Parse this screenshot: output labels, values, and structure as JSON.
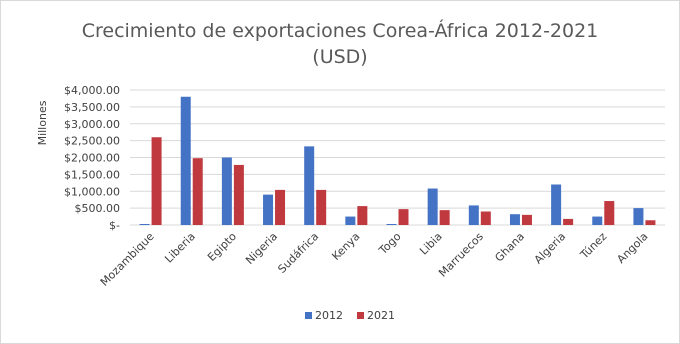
{
  "chart_data": {
    "type": "bar",
    "title": "Crecimiento de exportaciones Corea-África 2012-2021",
    "subtitle": "(USD)",
    "xlabel": "",
    "ylabel": "Millones",
    "ylim": [
      0,
      4000
    ],
    "yticks": [
      0,
      500,
      1000,
      1500,
      2000,
      2500,
      3000,
      3500,
      4000
    ],
    "ytick_labels": [
      "$-",
      "$500.00",
      "$1,000.00",
      "$1,500.00",
      "$2,000.00",
      "$2,500.00",
      "$3,000.00",
      "$3,500.00",
      "$4,000.00"
    ],
    "grid": true,
    "legend_position": "bottom",
    "categories": [
      "Mozambique",
      "Liberia",
      "Egipto",
      "Nigeria",
      "Sudáfrica",
      "Kenya",
      "Togo",
      "Libia",
      "Marruecos",
      "Ghana",
      "Algeria",
      "Túnez",
      "Angola"
    ],
    "series": [
      {
        "name": "2012",
        "color": "#4472C4",
        "values": [
          30,
          3800,
          2000,
          900,
          2330,
          250,
          30,
          1080,
          580,
          320,
          1200,
          250,
          500
        ]
      },
      {
        "name": "2021",
        "color": "#C0393F",
        "values": [
          2600,
          1980,
          1780,
          1040,
          1040,
          560,
          470,
          440,
          400,
          300,
          180,
          710,
          140
        ]
      }
    ]
  }
}
